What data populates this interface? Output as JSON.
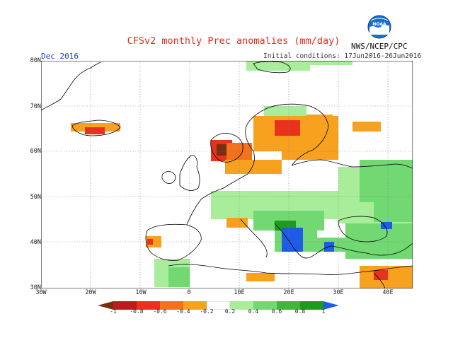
{
  "header": {
    "title": "CFSv2 monthly Prec anomalies (mm/day)",
    "month": "Dec 2016",
    "initial_conditions": "Initial conditions: 17Jun2016-26Jun2016",
    "agency": "NWS/NCEP/CPC",
    "logo_text": "NOAA"
  },
  "axes": {
    "lat_labels": [
      "80N",
      "70N",
      "60N",
      "50N",
      "40N",
      "30N"
    ],
    "lon_labels": [
      "30W",
      "20W",
      "10W",
      "0",
      "10E",
      "20E",
      "30E",
      "40E"
    ]
  },
  "legend": {
    "labels": [
      "-1",
      "-0.8",
      "-0.6",
      "-0.4",
      "-0.2",
      "0.2",
      "0.4",
      "0.6",
      "0.8",
      "1"
    ],
    "colors": [
      "#7a2d10",
      "#b81e1c",
      "#e8321e",
      "#f2721e",
      "#f7a11e",
      "#ffffff",
      "#a8ee9a",
      "#72d872",
      "#3fb83a",
      "#1f9a1f",
      "#1e5ce8"
    ]
  },
  "colors": {
    "ocean": "#ffffff",
    "coast": "#000000",
    "title": "#e8281c",
    "month": "#1f3fd8"
  }
}
